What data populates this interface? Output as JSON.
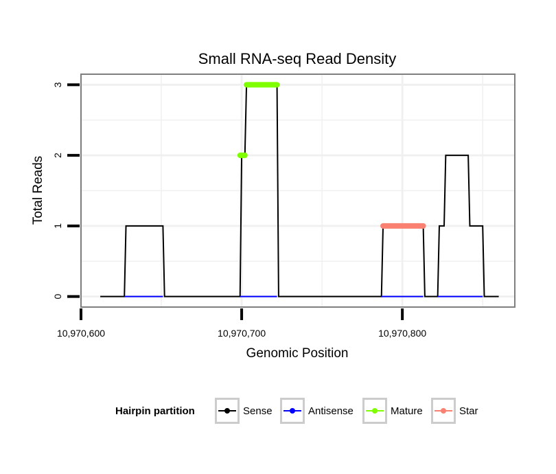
{
  "chart_data": {
    "type": "line",
    "title": "Small RNA-seq Read Density",
    "xlabel": "Genomic Position",
    "ylabel": "Total Reads",
    "xlim": [
      10970600,
      10970870
    ],
    "ylim": [
      -0.15,
      3.15
    ],
    "x_ticks": [
      10970600,
      10970700,
      10970800
    ],
    "x_tick_labels": [
      "10,970,600",
      "10,970,700",
      "10,970,800"
    ],
    "y_ticks": [
      0,
      1,
      2,
      3
    ],
    "y_tick_labels": [
      "0",
      "1",
      "2",
      "3"
    ],
    "grid": true,
    "legend": {
      "title": "Hairpin partition",
      "position": "bottom",
      "entries": [
        {
          "name": "Sense",
          "color": "#000000"
        },
        {
          "name": "Antisense",
          "color": "#0000ff"
        },
        {
          "name": "Mature",
          "color": "#7fff00"
        },
        {
          "name": "Star",
          "color": "#fa8072"
        }
      ]
    },
    "series": [
      {
        "name": "Sense",
        "color": "#000000",
        "x": [
          10970612,
          10970627,
          10970628,
          10970651,
          10970652,
          10970699,
          10970700,
          10970702,
          10970703,
          10970722,
          10970723,
          10970787,
          10970788,
          10970813,
          10970814,
          10970822,
          10970823,
          10970826,
          10970827,
          10970841,
          10970842,
          10970850,
          10970851,
          10970860
        ],
        "y": [
          0,
          0,
          1,
          1,
          0,
          0,
          2,
          2,
          3,
          3,
          0,
          0,
          1,
          1,
          0,
          0,
          1,
          1,
          2,
          2,
          1,
          1,
          0,
          0
        ]
      },
      {
        "name": "Antisense",
        "color": "#0000ff",
        "x": [
          10970627,
          10970651,
          10970699,
          10970722,
          10970787,
          10970813,
          10970822,
          10970850
        ],
        "y": [
          0,
          0,
          0,
          0,
          0,
          0,
          0,
          0
        ],
        "segments": [
          [
            0,
            1
          ],
          [
            2,
            3
          ],
          [
            4,
            5
          ],
          [
            6,
            7
          ]
        ]
      },
      {
        "name": "Mature",
        "color": "#7fff00",
        "x": [
          10970699,
          10970702,
          10970703,
          10970722
        ],
        "y": [
          2,
          2,
          3,
          3
        ],
        "segments": [
          [
            0,
            1
          ],
          [
            2,
            3
          ]
        ]
      },
      {
        "name": "Star",
        "color": "#fa8072",
        "x": [
          10970788,
          10970813
        ],
        "y": [
          1,
          1
        ],
        "segments": [
          [
            0,
            1
          ]
        ]
      }
    ]
  }
}
